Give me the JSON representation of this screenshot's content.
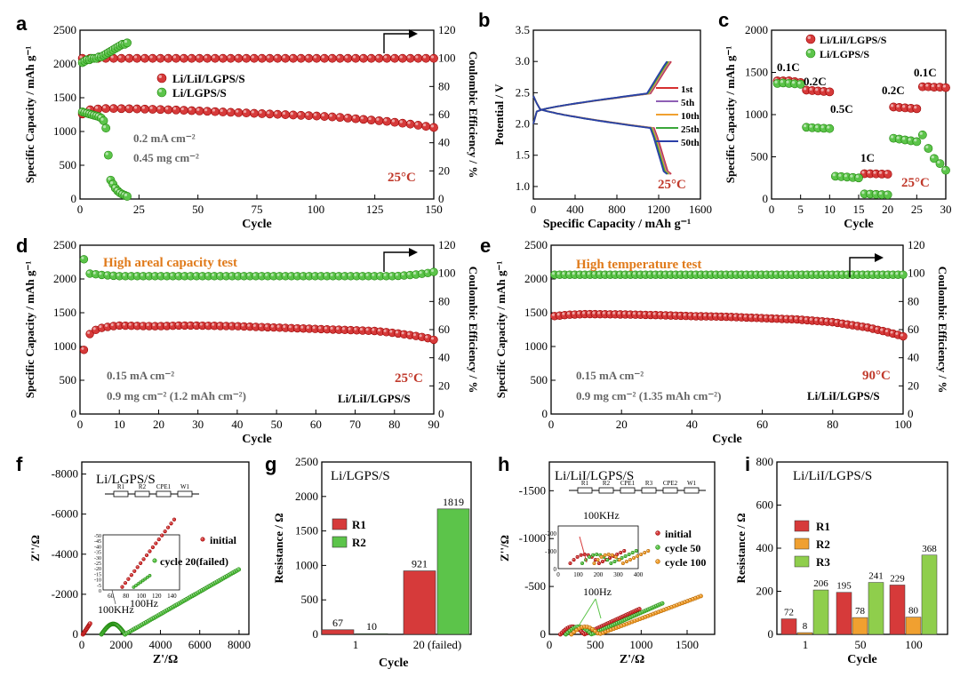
{
  "colors": {
    "red": "#d63a3a",
    "green": "#5cc44a",
    "orange": "#f0a030",
    "darkred": "#c0392b",
    "axis": "#000000",
    "note": "#e07a1a"
  },
  "panels": {
    "a": {
      "letter": "a",
      "xlabel": "Cycle",
      "ylabel": "Specific Capacity / mAh g⁻¹",
      "y2label": "Coulombic Efficiency / %",
      "xticks": [
        0,
        25,
        50,
        75,
        100,
        125,
        150
      ],
      "yticks": [
        0,
        500,
        1000,
        1500,
        2000,
        2500
      ],
      "y2ticks": [
        0,
        20,
        40,
        60,
        80,
        100,
        120
      ],
      "legend": [
        "Li/LiI/LGPS/S",
        "Li/LGPS/S"
      ],
      "notes": [
        "0.2 mA cm⁻²",
        "0.45 mg cm⁻²"
      ],
      "temp": "25°C"
    },
    "b": {
      "letter": "b",
      "xlabel": "Specific Capacity / mAh g⁻¹",
      "ylabel": "Potential / V",
      "xticks": [
        0,
        400,
        800,
        1200,
        1600
      ],
      "yticks": [
        1.0,
        1.5,
        2.0,
        2.5,
        3.0,
        3.5
      ],
      "legend": [
        "1st",
        "5th",
        "10th",
        "25th",
        "50th"
      ],
      "temp": "25°C"
    },
    "c": {
      "letter": "c",
      "xlabel": "Cycle",
      "ylabel": "Specific Capacity / mAh g⁻¹",
      "xticks": [
        0,
        5,
        10,
        15,
        20,
        25,
        30
      ],
      "yticks": [
        0,
        500,
        1000,
        1500,
        2000
      ],
      "legend": [
        "Li/LiI/LGPS/S",
        "Li/LGPS/S"
      ],
      "rates": [
        "0.1C",
        "0.2C",
        "0.5C",
        "1C",
        "0.2C",
        "0.1C"
      ],
      "temp": "25°C"
    },
    "d": {
      "letter": "d",
      "xlabel": "Cycle",
      "ylabel": "Specific Capacity / mAh g⁻¹",
      "y2label": "Coulombic Efficiency / %",
      "xticks": [
        0,
        10,
        20,
        30,
        40,
        50,
        60,
        70,
        80,
        90
      ],
      "yticks": [
        0,
        500,
        1000,
        1500,
        2000,
        2500
      ],
      "y2ticks": [
        0,
        20,
        40,
        60,
        80,
        100,
        120
      ],
      "title": "High areal capacity test",
      "notes": [
        "0.15 mA cm⁻²",
        "0.9 mg cm⁻² (1.2 mAh cm⁻²)"
      ],
      "temp": "25°C",
      "cell": "Li/LiI/LGPS/S"
    },
    "e": {
      "letter": "e",
      "xlabel": "Cycle",
      "ylabel": "Specific Capacity / mAh g⁻¹",
      "y2label": "Coulombic Efficiency / %",
      "xticks": [
        0,
        20,
        40,
        60,
        80,
        100
      ],
      "yticks": [
        0,
        500,
        1000,
        1500,
        2000,
        2500
      ],
      "y2ticks": [
        0,
        20,
        40,
        60,
        80,
        100,
        120
      ],
      "title": "High temperature test",
      "notes": [
        "0.15 mA cm⁻²",
        "0.9 mg cm⁻² (1.35 mAh cm⁻²)"
      ],
      "temp": "90°C",
      "cell": "Li/LiI/LGPS/S"
    },
    "f": {
      "letter": "f",
      "title": "Li/LGPS/S",
      "xlabel": "Z'/Ω",
      "ylabel": "Z''/Ω",
      "xticks": [
        0,
        2000,
        4000,
        6000,
        8000
      ],
      "yticks": [
        0,
        -2000,
        -4000,
        -6000,
        -8000
      ],
      "inset_xticks": [
        60,
        80,
        100,
        120,
        140
      ],
      "inset_yticks": [
        0,
        -5,
        -10,
        -15,
        -20,
        -25,
        -30,
        -35,
        -40,
        -45,
        -50
      ],
      "legend": [
        "initial",
        "cycle 20(failed)"
      ],
      "labels": [
        "100KHz",
        "100Hz"
      ],
      "circuit": [
        "R1",
        "R2",
        "CPE1",
        "W1"
      ]
    },
    "h": {
      "letter": "h",
      "title": "Li/LiI/LGPS/S",
      "xlabel": "Z'/Ω",
      "ylabel": "Z''/Ω",
      "xticks": [
        0,
        500,
        1000,
        1500
      ],
      "yticks": [
        0,
        -500,
        -1000,
        -1500
      ],
      "inset_xticks": [
        0,
        100,
        200,
        300,
        400
      ],
      "inset_yticks": [
        0,
        -100,
        -200
      ],
      "legend": [
        "initial",
        "cycle 50",
        "cycle 100"
      ],
      "labels": [
        "100KHz",
        "100Hz"
      ],
      "circuit": [
        "R1",
        "R2",
        "CPE1",
        "R3",
        "CPE2",
        "W1"
      ]
    },
    "g": {
      "letter": "g",
      "title": "Li/LGPS/S",
      "xlabel": "Cycle",
      "ylabel": "Resistance / Ω",
      "yticks": [
        0,
        500,
        1000,
        1500,
        2000,
        2500
      ]
    },
    "i": {
      "letter": "i",
      "title": "Li/LiI/LGPS/S",
      "xlabel": "Cycle",
      "ylabel": "Resistance / Ω",
      "yticks": [
        0,
        200,
        400,
        600,
        800
      ]
    }
  },
  "chart_data": [
    {
      "id": "a",
      "type": "scatter",
      "xlim": [
        0,
        150
      ],
      "ylim": [
        0,
        2500
      ],
      "y2lim": [
        0,
        120
      ],
      "series": [
        {
          "name": "Li/LiI/LGPS/S capacity",
          "x": [
            1,
            2,
            4,
            6,
            8,
            10,
            15,
            20,
            30,
            40,
            50,
            60,
            70,
            80,
            90,
            100,
            110,
            120,
            130,
            140,
            150
          ],
          "y": [
            1260,
            1300,
            1320,
            1330,
            1335,
            1340,
            1340,
            1338,
            1330,
            1320,
            1305,
            1290,
            1275,
            1260,
            1245,
            1230,
            1210,
            1180,
            1150,
            1110,
            1060
          ]
        },
        {
          "name": "Li/LiI/LGPS/S CE",
          "axis": "y2",
          "x": [
            1,
            10,
            20,
            40,
            60,
            80,
            100,
            120,
            140,
            150
          ],
          "y": [
            100,
            100,
            100,
            100,
            100,
            100,
            100,
            100,
            100,
            100
          ]
        },
        {
          "name": "Li/LGPS/S capacity",
          "x": [
            1,
            2,
            3,
            4,
            5,
            6,
            7,
            8,
            9,
            10,
            11,
            12,
            13,
            14,
            15,
            16,
            17,
            18,
            19,
            20
          ],
          "y": [
            1290,
            1280,
            1270,
            1260,
            1250,
            1240,
            1230,
            1220,
            1200,
            1160,
            1050,
            650,
            280,
            220,
            160,
            120,
            90,
            70,
            55,
            40
          ]
        },
        {
          "name": "Li/LGPS/S CE",
          "axis": "y2",
          "x": [
            1,
            2,
            3,
            4,
            5,
            6,
            7,
            8,
            9,
            10,
            11,
            12,
            13,
            14,
            15,
            16,
            17,
            18,
            19,
            20
          ],
          "y": [
            97,
            98,
            99,
            99,
            100,
            100,
            100,
            101,
            101,
            102,
            103,
            104,
            105,
            106,
            107,
            108,
            109,
            110,
            110,
            111
          ]
        }
      ]
    },
    {
      "id": "b",
      "type": "line",
      "xlim": [
        0,
        1600
      ],
      "ylim": [
        0.8,
        3.5
      ],
      "series": [
        {
          "name": "1st",
          "cap": 1320
        },
        {
          "name": "5th",
          "cap": 1310
        },
        {
          "name": "10th",
          "cap": 1300
        },
        {
          "name": "25th",
          "cap": 1290
        },
        {
          "name": "50th",
          "cap": 1280
        }
      ]
    },
    {
      "id": "c",
      "type": "scatter",
      "xlim": [
        0,
        30
      ],
      "ylim": [
        0,
        2000
      ],
      "series": [
        {
          "name": "Li/LiI/LGPS/S",
          "x": [
            1,
            2,
            3,
            4,
            5,
            6,
            7,
            8,
            9,
            10,
            16,
            17,
            18,
            19,
            20,
            21,
            22,
            23,
            24,
            25,
            26,
            27,
            28,
            29,
            30
          ],
          "y": [
            1400,
            1400,
            1400,
            1390,
            1380,
            1290,
            1285,
            1280,
            1275,
            1270,
            300,
            300,
            298,
            296,
            295,
            1090,
            1085,
            1080,
            1075,
            1070,
            1330,
            1330,
            1325,
            1325,
            1320
          ]
        },
        {
          "name": "Li/LGPS/S",
          "x": [
            1,
            2,
            3,
            4,
            5,
            6,
            7,
            8,
            9,
            10,
            11,
            12,
            13,
            14,
            15,
            16,
            17,
            18,
            19,
            20,
            21,
            22,
            23,
            24,
            25,
            26,
            27,
            28,
            29,
            30
          ],
          "y": [
            1370,
            1375,
            1370,
            1365,
            1360,
            850,
            845,
            840,
            838,
            835,
            270,
            265,
            260,
            255,
            250,
            60,
            58,
            55,
            52,
            50,
            720,
            710,
            700,
            690,
            680,
            760,
            600,
            480,
            420,
            340
          ]
        }
      ]
    },
    {
      "id": "d",
      "type": "scatter",
      "xlim": [
        0,
        90
      ],
      "ylim": [
        0,
        2500
      ],
      "y2lim": [
        0,
        120
      ],
      "series": [
        {
          "name": "capacity",
          "x": [
            1,
            2,
            3,
            5,
            8,
            10,
            15,
            20,
            25,
            30,
            35,
            40,
            45,
            50,
            55,
            60,
            65,
            70,
            75,
            80,
            85,
            88,
            90
          ],
          "y": [
            950,
            1150,
            1220,
            1270,
            1300,
            1310,
            1305,
            1300,
            1310,
            1310,
            1305,
            1300,
            1290,
            1280,
            1270,
            1260,
            1250,
            1240,
            1230,
            1200,
            1160,
            1130,
            1100
          ]
        },
        {
          "name": "CE",
          "axis": "y2",
          "x": [
            1,
            2,
            5,
            10,
            20,
            30,
            40,
            50,
            60,
            70,
            80,
            85,
            88,
            90
          ],
          "y": [
            110,
            100,
            99,
            98,
            98,
            98,
            98,
            98,
            98,
            98,
            98,
            99,
            100,
            101
          ]
        }
      ]
    },
    {
      "id": "e",
      "type": "scatter",
      "xlim": [
        0,
        100
      ],
      "ylim": [
        0,
        2500
      ],
      "y2lim": [
        0,
        120
      ],
      "series": [
        {
          "name": "capacity",
          "x": [
            1,
            5,
            10,
            20,
            30,
            40,
            50,
            60,
            70,
            80,
            85,
            90,
            95,
            98,
            100
          ],
          "y": [
            1450,
            1470,
            1480,
            1475,
            1465,
            1450,
            1440,
            1420,
            1400,
            1360,
            1320,
            1280,
            1220,
            1180,
            1150
          ]
        },
        {
          "name": "CE",
          "axis": "y2",
          "x": [
            1,
            10,
            20,
            30,
            40,
            50,
            60,
            70,
            80,
            90,
            100
          ],
          "y": [
            99,
            99,
            99,
            99,
            99,
            99,
            99,
            99,
            99,
            99,
            99
          ]
        }
      ]
    },
    {
      "id": "g",
      "type": "bar",
      "categories": [
        "1",
        "20 (failed)"
      ],
      "ylim": [
        0,
        2500
      ],
      "series": [
        {
          "name": "R1",
          "values": [
            67,
            921
          ]
        },
        {
          "name": "R2",
          "values": [
            10,
            1819
          ]
        }
      ]
    },
    {
      "id": "i",
      "type": "bar",
      "categories": [
        "1",
        "50",
        "100"
      ],
      "ylim": [
        0,
        800
      ],
      "series": [
        {
          "name": "R1",
          "values": [
            72,
            195,
            229
          ]
        },
        {
          "name": "R2",
          "values": [
            8,
            78,
            80
          ]
        },
        {
          "name": "R3",
          "values": [
            206,
            241,
            368
          ]
        }
      ]
    }
  ]
}
